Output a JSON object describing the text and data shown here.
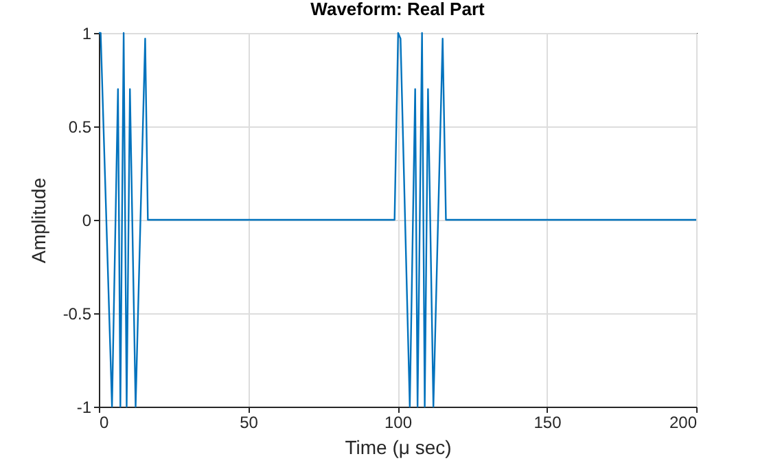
{
  "chart_data": {
    "type": "line",
    "title": "Waveform: Real Part",
    "xlabel": "Time (μ sec)",
    "ylabel": "Amplitude",
    "series": [
      {
        "color": "#0072bd",
        "x": [
          0,
          0.6,
          4.4,
          6.4,
          7.2,
          8.3,
          9.3,
          10.4,
          12.3,
          15.5,
          16.4,
          99.0,
          100.2,
          101.0,
          104.1,
          105.9,
          106.7,
          108.2,
          109.1,
          110.2,
          112.0,
          115.1,
          116.2,
          200
        ],
        "values": [
          1,
          1,
          -1,
          0.7,
          -1,
          1,
          -1,
          0.7,
          -1,
          0.97,
          0,
          0,
          1,
          0.97,
          -1,
          0.7,
          -1,
          1,
          -1,
          0.7,
          -1,
          0.97,
          0,
          0
        ]
      }
    ],
    "xlim": [
      0,
      200
    ],
    "xticks": [
      0,
      50,
      100,
      150,
      200
    ],
    "ylim": [
      -1,
      1
    ],
    "yticks": [
      -1,
      -0.5,
      0,
      0.5,
      1
    ],
    "grid": true,
    "legend": false
  }
}
